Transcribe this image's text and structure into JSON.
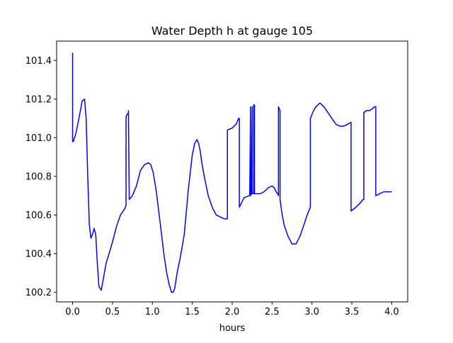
{
  "chart_data": {
    "type": "line",
    "title": "Water Depth h at gauge 105",
    "xlabel": "hours",
    "ylabel": "",
    "xlim": [
      -0.2,
      4.2
    ],
    "ylim": [
      100.15,
      101.5
    ],
    "xticks": [
      0.0,
      0.5,
      1.0,
      1.5,
      2.0,
      2.5,
      3.0,
      3.5,
      4.0
    ],
    "xtick_labels": [
      "0.0",
      "0.5",
      "1.0",
      "1.5",
      "2.0",
      "2.5",
      "3.0",
      "3.5",
      "4.0"
    ],
    "yticks": [
      100.2,
      100.4,
      100.6,
      100.8,
      101.0,
      101.2,
      101.4
    ],
    "ytick_labels": [
      "100.2",
      "100.4",
      "100.6",
      "100.8",
      "101.0",
      "101.2",
      "101.4"
    ],
    "grid": false,
    "series": [
      {
        "color": "#0000ff",
        "x": [
          0.0,
          0.0,
          0.01,
          0.04,
          0.08,
          0.12,
          0.15,
          0.17,
          0.19,
          0.21,
          0.23,
          0.25,
          0.27,
          0.29,
          0.31,
          0.33,
          0.36,
          0.39,
          0.42,
          0.45,
          0.5,
          0.55,
          0.6,
          0.65,
          0.67,
          0.67,
          0.7,
          0.7,
          0.71,
          0.75,
          0.8,
          0.85,
          0.9,
          0.95,
          0.98,
          1.01,
          1.05,
          1.1,
          1.15,
          1.18,
          1.21,
          1.24,
          1.26,
          1.28,
          1.31,
          1.35,
          1.4,
          1.45,
          1.5,
          1.53,
          1.56,
          1.58,
          1.6,
          1.62,
          1.65,
          1.7,
          1.75,
          1.8,
          1.85,
          1.9,
          1.94,
          1.94,
          2.0,
          2.05,
          2.08,
          2.09,
          2.09,
          2.15,
          2.22,
          2.23,
          2.23,
          2.24,
          2.25,
          2.25,
          2.27,
          2.27,
          2.28,
          2.28,
          2.3,
          2.35,
          2.4,
          2.45,
          2.5,
          2.53,
          2.55,
          2.57,
          2.58,
          2.58,
          2.59,
          2.6,
          2.6,
          2.62,
          2.65,
          2.7,
          2.75,
          2.8,
          2.85,
          2.9,
          2.94,
          2.97,
          2.98,
          2.98,
          3.02,
          3.05,
          3.1,
          3.15,
          3.2,
          3.25,
          3.3,
          3.35,
          3.4,
          3.45,
          3.49,
          3.49,
          3.55,
          3.6,
          3.64,
          3.65,
          3.65,
          3.68,
          3.7,
          3.72,
          3.76,
          3.78,
          3.8,
          3.8,
          3.85,
          3.9,
          3.95,
          4.0
        ],
        "y": [
          101.44,
          100.98,
          100.98,
          101.02,
          101.1,
          101.19,
          101.2,
          101.1,
          100.8,
          100.55,
          100.48,
          100.5,
          100.53,
          100.5,
          100.35,
          100.23,
          100.21,
          100.28,
          100.35,
          100.39,
          100.46,
          100.54,
          100.6,
          100.63,
          100.65,
          101.11,
          101.13,
          101.14,
          100.68,
          100.7,
          100.75,
          100.83,
          100.86,
          100.87,
          100.86,
          100.82,
          100.72,
          100.55,
          100.38,
          100.3,
          100.24,
          100.2,
          100.2,
          100.22,
          100.3,
          100.38,
          100.5,
          100.73,
          100.91,
          100.97,
          100.99,
          100.97,
          100.93,
          100.87,
          100.8,
          100.7,
          100.64,
          100.6,
          100.59,
          100.58,
          100.58,
          101.04,
          101.05,
          101.07,
          101.1,
          101.1,
          100.64,
          100.69,
          100.7,
          101.16,
          100.7,
          100.71,
          101.16,
          100.71,
          100.71,
          101.17,
          101.17,
          100.71,
          100.71,
          100.71,
          100.72,
          100.74,
          100.75,
          100.74,
          100.72,
          100.71,
          100.7,
          101.16,
          101.15,
          101.14,
          100.68,
          100.62,
          100.55,
          100.49,
          100.45,
          100.45,
          100.49,
          100.55,
          100.6,
          100.63,
          100.64,
          101.1,
          101.14,
          101.16,
          101.18,
          101.16,
          101.13,
          101.1,
          101.07,
          101.06,
          101.06,
          101.07,
          101.08,
          100.62,
          100.64,
          100.66,
          100.68,
          100.68,
          101.13,
          101.14,
          101.14,
          101.14,
          101.15,
          101.16,
          101.16,
          100.7,
          100.71,
          100.72,
          100.72,
          100.72
        ]
      }
    ]
  }
}
